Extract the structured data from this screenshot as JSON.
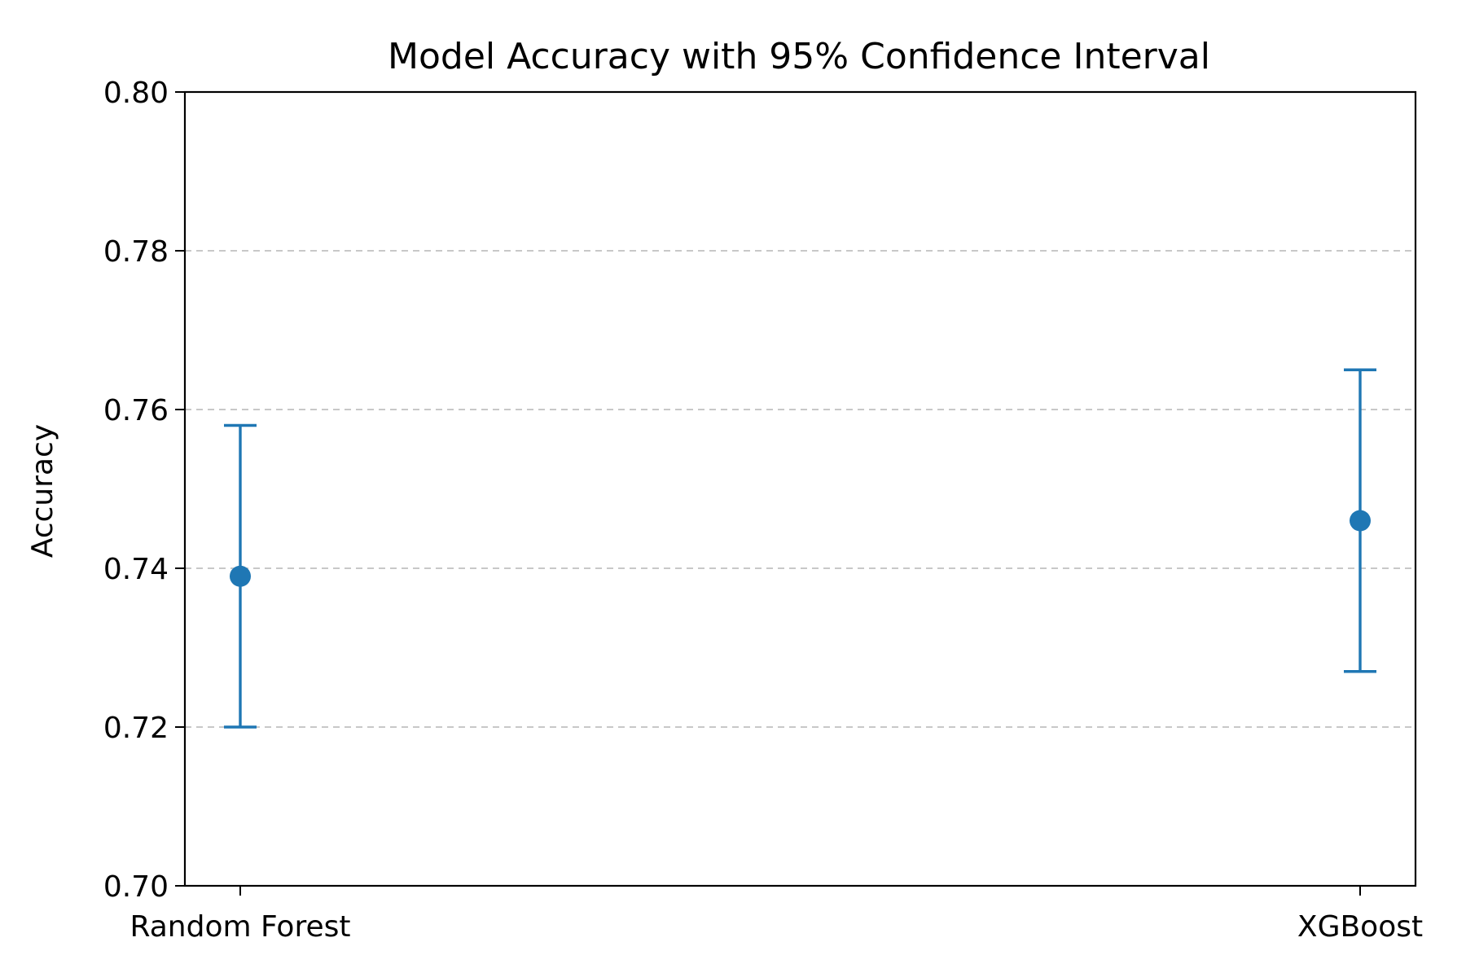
{
  "chart_data": {
    "type": "scatter",
    "title": "Model Accuracy with 95% Confidence Interval",
    "xlabel": "",
    "ylabel": "Accuracy",
    "categories": [
      "Random Forest",
      "XGBoost"
    ],
    "series": [
      {
        "values": [
          0.739,
          0.746
        ],
        "ci_lower": [
          0.72,
          0.727
        ],
        "ci_upper": [
          0.758,
          0.765
        ]
      }
    ],
    "ylim": [
      0.7,
      0.8
    ],
    "yticks": [
      "0.70",
      "0.72",
      "0.74",
      "0.76",
      "0.78",
      "0.80"
    ],
    "grid": "y-dashed",
    "error_bars": true,
    "legend": "none",
    "colors": {
      "series": "#1f77b4",
      "grid": "#c8c8c8",
      "axis": "#000000"
    }
  }
}
